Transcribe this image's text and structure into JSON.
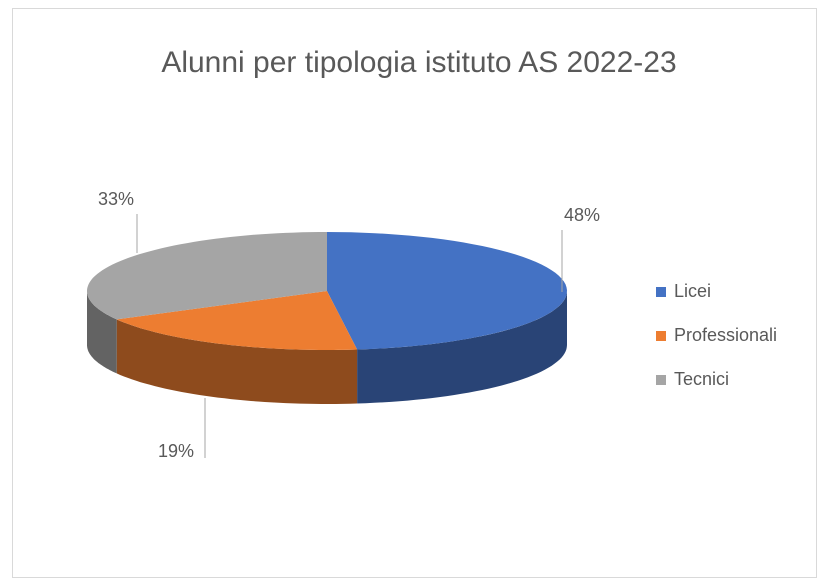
{
  "chart_data": {
    "type": "pie",
    "title": "Alunni per tipologia istituto AS 2022-23",
    "categories": [
      "Licei",
      "Professionali",
      "Tecnici"
    ],
    "values": [
      48,
      19,
      33
    ],
    "value_labels": [
      "48%",
      "19%",
      "33%"
    ],
    "colors": [
      "#4472c4",
      "#ed7d31",
      "#a5a5a5"
    ],
    "legend": "right"
  }
}
